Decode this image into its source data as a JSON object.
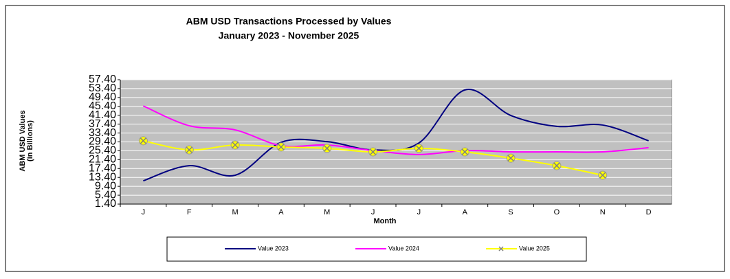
{
  "chart_data": {
    "type": "line",
    "title": "ABM USD Transactions Processed by Values",
    "subtitle": "January 2023 - November 2025",
    "x_label": "Month",
    "y_label": "ABM USD Values",
    "y_label_unit": "(in Billions)",
    "categories": [
      "J",
      "F",
      "M",
      "A",
      "M",
      "J",
      "J",
      "A",
      "S",
      "O",
      "N",
      "D"
    ],
    "series": [
      {
        "name": "Value 2023",
        "color": "#000080",
        "values": [
          11.9,
          18.7,
          14.4,
          29.2,
          29.5,
          25.8,
          28.9,
          52.8,
          41.3,
          36.4,
          37.0,
          29.9
        ]
      },
      {
        "name": "Value 2024",
        "color": "#ff00ff",
        "values": [
          45.6,
          36.7,
          34.8,
          27.7,
          28.0,
          25.5,
          23.7,
          25.5,
          24.9,
          24.9,
          24.9,
          26.8
        ]
      },
      {
        "name": "Value 2025",
        "color": "#ffff00",
        "marker": "x",
        "values": [
          29.9,
          25.8,
          28.0,
          27.1,
          26.5,
          24.9,
          26.5,
          24.9,
          22.1,
          18.7,
          14.4,
          null
        ]
      }
    ],
    "ylim": [
      1.4,
      57.4
    ],
    "yticks": [
      {
        "value": 1.4,
        "label": "1.40"
      },
      {
        "value": 5.4,
        "label": "5.40"
      },
      {
        "value": 9.4,
        "label": "9.40"
      },
      {
        "value": 13.4,
        "label": "13.40"
      },
      {
        "value": 17.4,
        "label": "17.40"
      },
      {
        "value": 21.4,
        "label": "21.40"
      },
      {
        "value": 25.4,
        "label": "25.40"
      },
      {
        "value": 29.4,
        "label": "29.40"
      },
      {
        "value": 33.4,
        "label": "33.40"
      },
      {
        "value": 37.4,
        "label": "37.40"
      },
      {
        "value": 41.4,
        "label": "41.40"
      },
      {
        "value": 45.4,
        "label": "45.40"
      },
      {
        "value": 49.4,
        "label": "49.40"
      },
      {
        "value": 53.4,
        "label": "53.40"
      },
      {
        "value": 57.4,
        "label": "57.40"
      }
    ],
    "grid": true,
    "smooth": true,
    "legend": "bottom"
  }
}
